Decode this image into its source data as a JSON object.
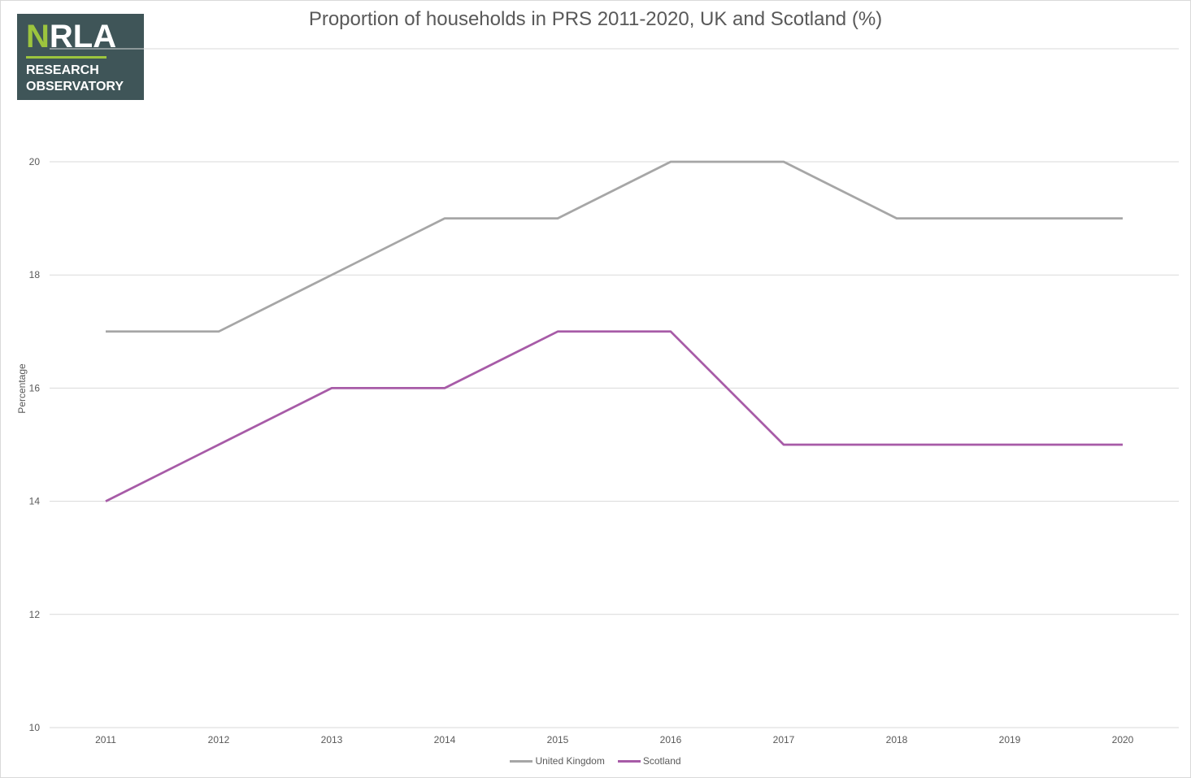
{
  "chart_data": {
    "type": "line",
    "title": "Proportion of households in PRS 2011-2020, UK and Scotland (%)",
    "xlabel": "",
    "ylabel": "Percentage",
    "x": [
      "2011",
      "2012",
      "2013",
      "2014",
      "2015",
      "2016",
      "2017",
      "2018",
      "2019",
      "2020"
    ],
    "ylim": [
      10,
      20
    ],
    "yticks": [
      10,
      12,
      14,
      16,
      18,
      20
    ],
    "grid": true,
    "legend_position": "bottom",
    "series": [
      {
        "name": "United Kingdom",
        "color": "#a6a6a6",
        "values": [
          17,
          17,
          18,
          19,
          19,
          20,
          20,
          19,
          19,
          19
        ]
      },
      {
        "name": "Scotland",
        "color": "#a75ba7",
        "values": [
          14,
          15,
          16,
          16,
          17,
          17,
          15,
          15,
          15,
          15
        ]
      }
    ]
  },
  "logo": {
    "word_n": "N",
    "word_rest": "RLA",
    "line1": "RESEARCH",
    "line2": "OBSERVATORY",
    "background": "#3f5558",
    "accent": "#9cc43e"
  }
}
